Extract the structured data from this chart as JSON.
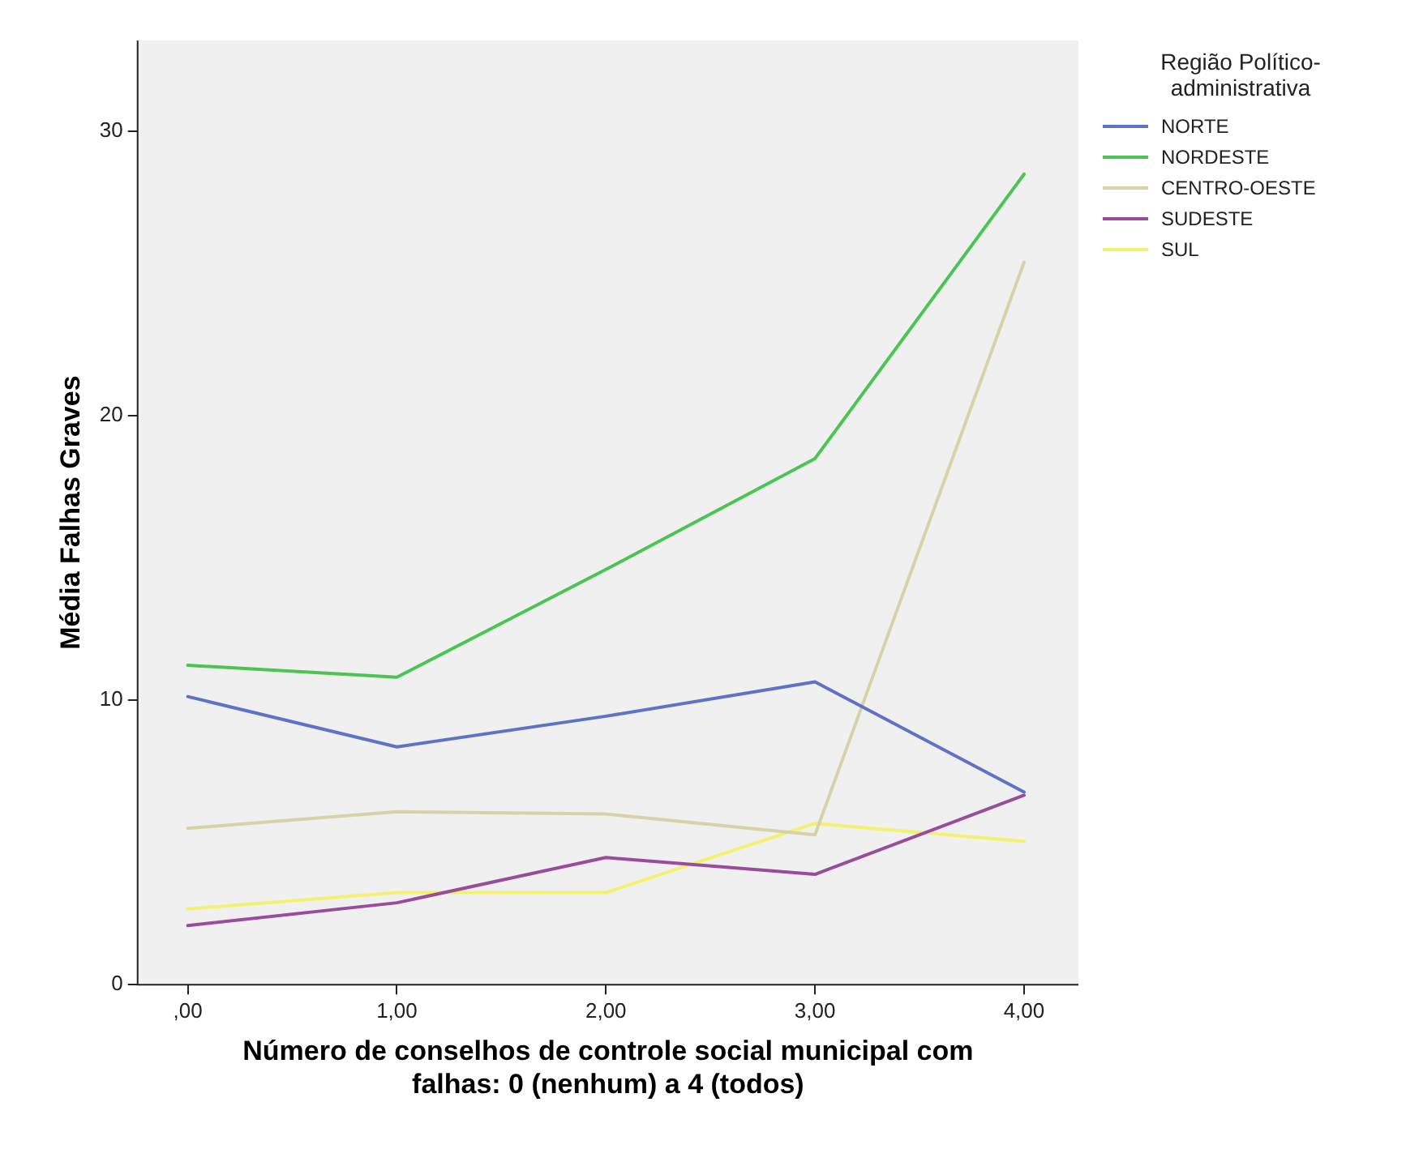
{
  "chart_data": {
    "type": "line",
    "xlabel": "Número de conselhos de controle social municipal com falhas: 0 (nenhum) a 4 (todos)",
    "ylabel": "Média Falhas Graves",
    "legend_title": "Região Político-administrativa",
    "x": [
      0,
      1,
      2,
      3,
      4
    ],
    "xlim": [
      -0.24,
      4.26
    ],
    "xticks": [
      {
        "value": 0,
        "label": ",00"
      },
      {
        "value": 1,
        "label": "1,00"
      },
      {
        "value": 2,
        "label": "2,00"
      },
      {
        "value": 3,
        "label": "3,00"
      },
      {
        "value": 4,
        "label": "4,00"
      }
    ],
    "ylim": [
      0,
      33.2
    ],
    "yticks": [
      0,
      10,
      20,
      30
    ],
    "grid": false,
    "legend": "right",
    "marker": "none",
    "line_style": "solid",
    "series": [
      {
        "name": "NORTE",
        "color": "#5e73c8",
        "values": [
          10.13,
          8.36,
          9.44,
          10.65,
          6.77
        ]
      },
      {
        "name": "NORDESTE",
        "color": "#4cc453",
        "values": [
          11.23,
          10.81,
          14.6,
          18.5,
          28.5
        ]
      },
      {
        "name": "CENTRO-OESTE",
        "color": "#d8d2a8",
        "values": [
          5.5,
          6.08,
          6.0,
          5.27,
          25.4
        ]
      },
      {
        "name": "SUDESTE",
        "color": "#9a4c9c",
        "values": [
          2.08,
          2.88,
          4.47,
          3.88,
          6.66
        ]
      },
      {
        "name": "SUL",
        "color": "#f2f270",
        "values": [
          2.66,
          3.24,
          3.24,
          5.67,
          5.04
        ]
      }
    ]
  }
}
